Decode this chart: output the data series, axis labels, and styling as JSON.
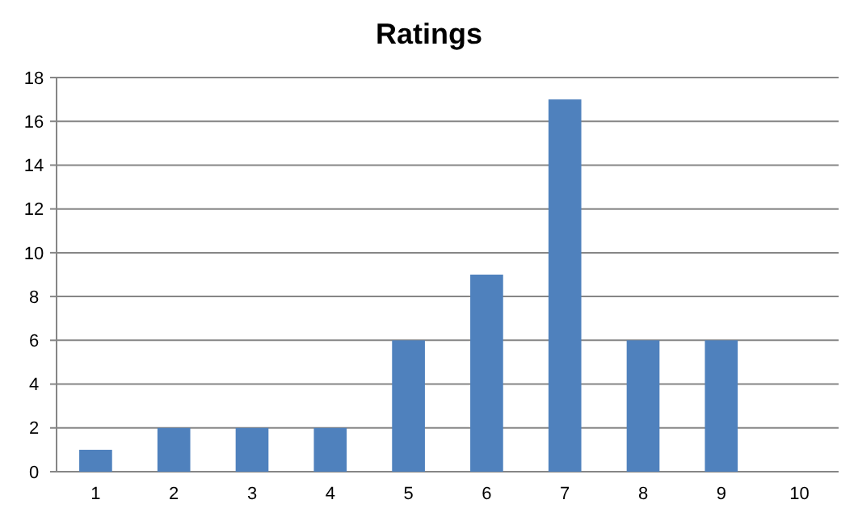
{
  "chart_data": {
    "type": "bar",
    "title": "Ratings",
    "categories": [
      "1",
      "2",
      "3",
      "4",
      "5",
      "6",
      "7",
      "8",
      "9",
      "10"
    ],
    "values": [
      1,
      2,
      2,
      2,
      6,
      9,
      17,
      6,
      6,
      0
    ],
    "color": "#4f81bd",
    "ylim": [
      0,
      18
    ],
    "yticks": [
      0,
      2,
      4,
      6,
      8,
      10,
      12,
      14,
      16,
      18
    ],
    "grid": "y"
  }
}
